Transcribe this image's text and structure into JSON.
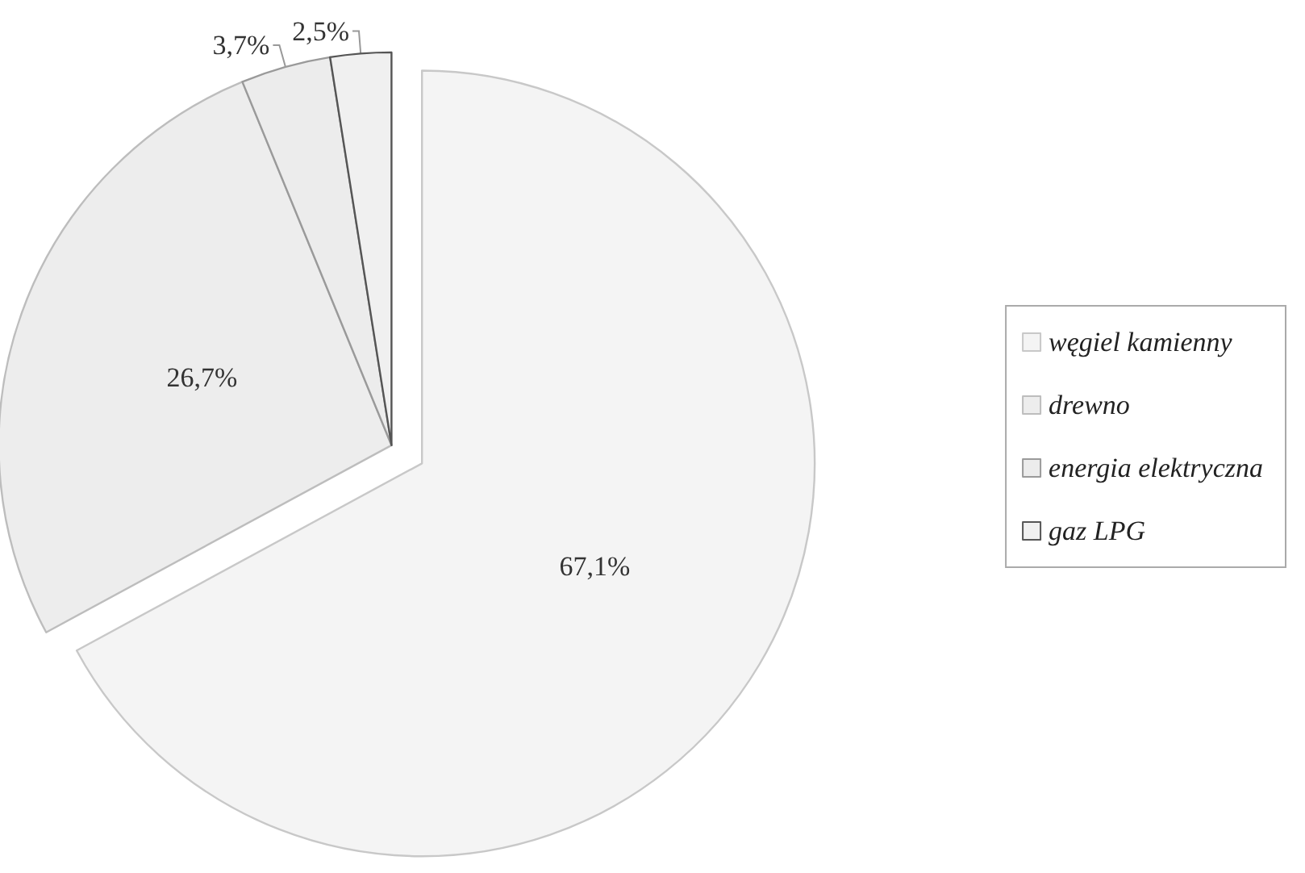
{
  "chart_data": {
    "type": "pie",
    "categories": [
      "węgiel kamienny",
      "drewno",
      "energia elektryczna",
      "gaz LPG"
    ],
    "values": [
      67.1,
      26.7,
      3.7,
      2.5
    ],
    "value_labels": [
      "67,1%",
      "26,7%",
      "3,7%",
      "2,5%"
    ],
    "colors": [
      "#f4f4f4",
      "#ededed",
      "#ececec",
      "#f0f0f0"
    ],
    "legend": "right"
  }
}
